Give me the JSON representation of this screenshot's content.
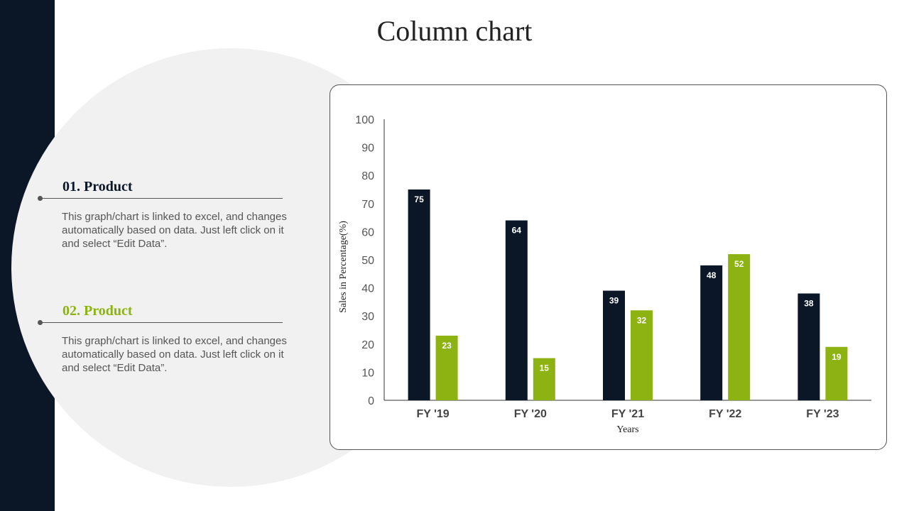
{
  "slide": {
    "title": "Column chart"
  },
  "products": [
    {
      "title": "01. Product",
      "title_color": "#0b1727",
      "text": "This graph/chart is linked to excel, and changes automatically based on data. Just left click on it and select “Edit Data”."
    },
    {
      "title": "02. Product",
      "title_color": "#8db312",
      "text": "This graph/chart is linked to excel, and changes automatically based on data. Just left click on it and select “Edit Data”."
    }
  ],
  "chart_data": {
    "type": "bar",
    "categories": [
      "FY '19",
      "FY '20",
      "FY '21",
      "FY '22",
      "FY '23"
    ],
    "series": [
      {
        "values": [
          75,
          64,
          39,
          48,
          38
        ],
        "color": "#0b1727"
      },
      {
        "values": [
          23,
          15,
          32,
          52,
          19
        ],
        "color": "#8db312"
      }
    ],
    "xlabel": "Years",
    "ylabel": "Sales in Percentage(%)",
    "ylim": [
      0,
      100
    ],
    "yticks": [
      0,
      10,
      20,
      30,
      40,
      50,
      60,
      70,
      80,
      90,
      100
    ],
    "grid": false,
    "legend": "none",
    "data_labels": true
  }
}
